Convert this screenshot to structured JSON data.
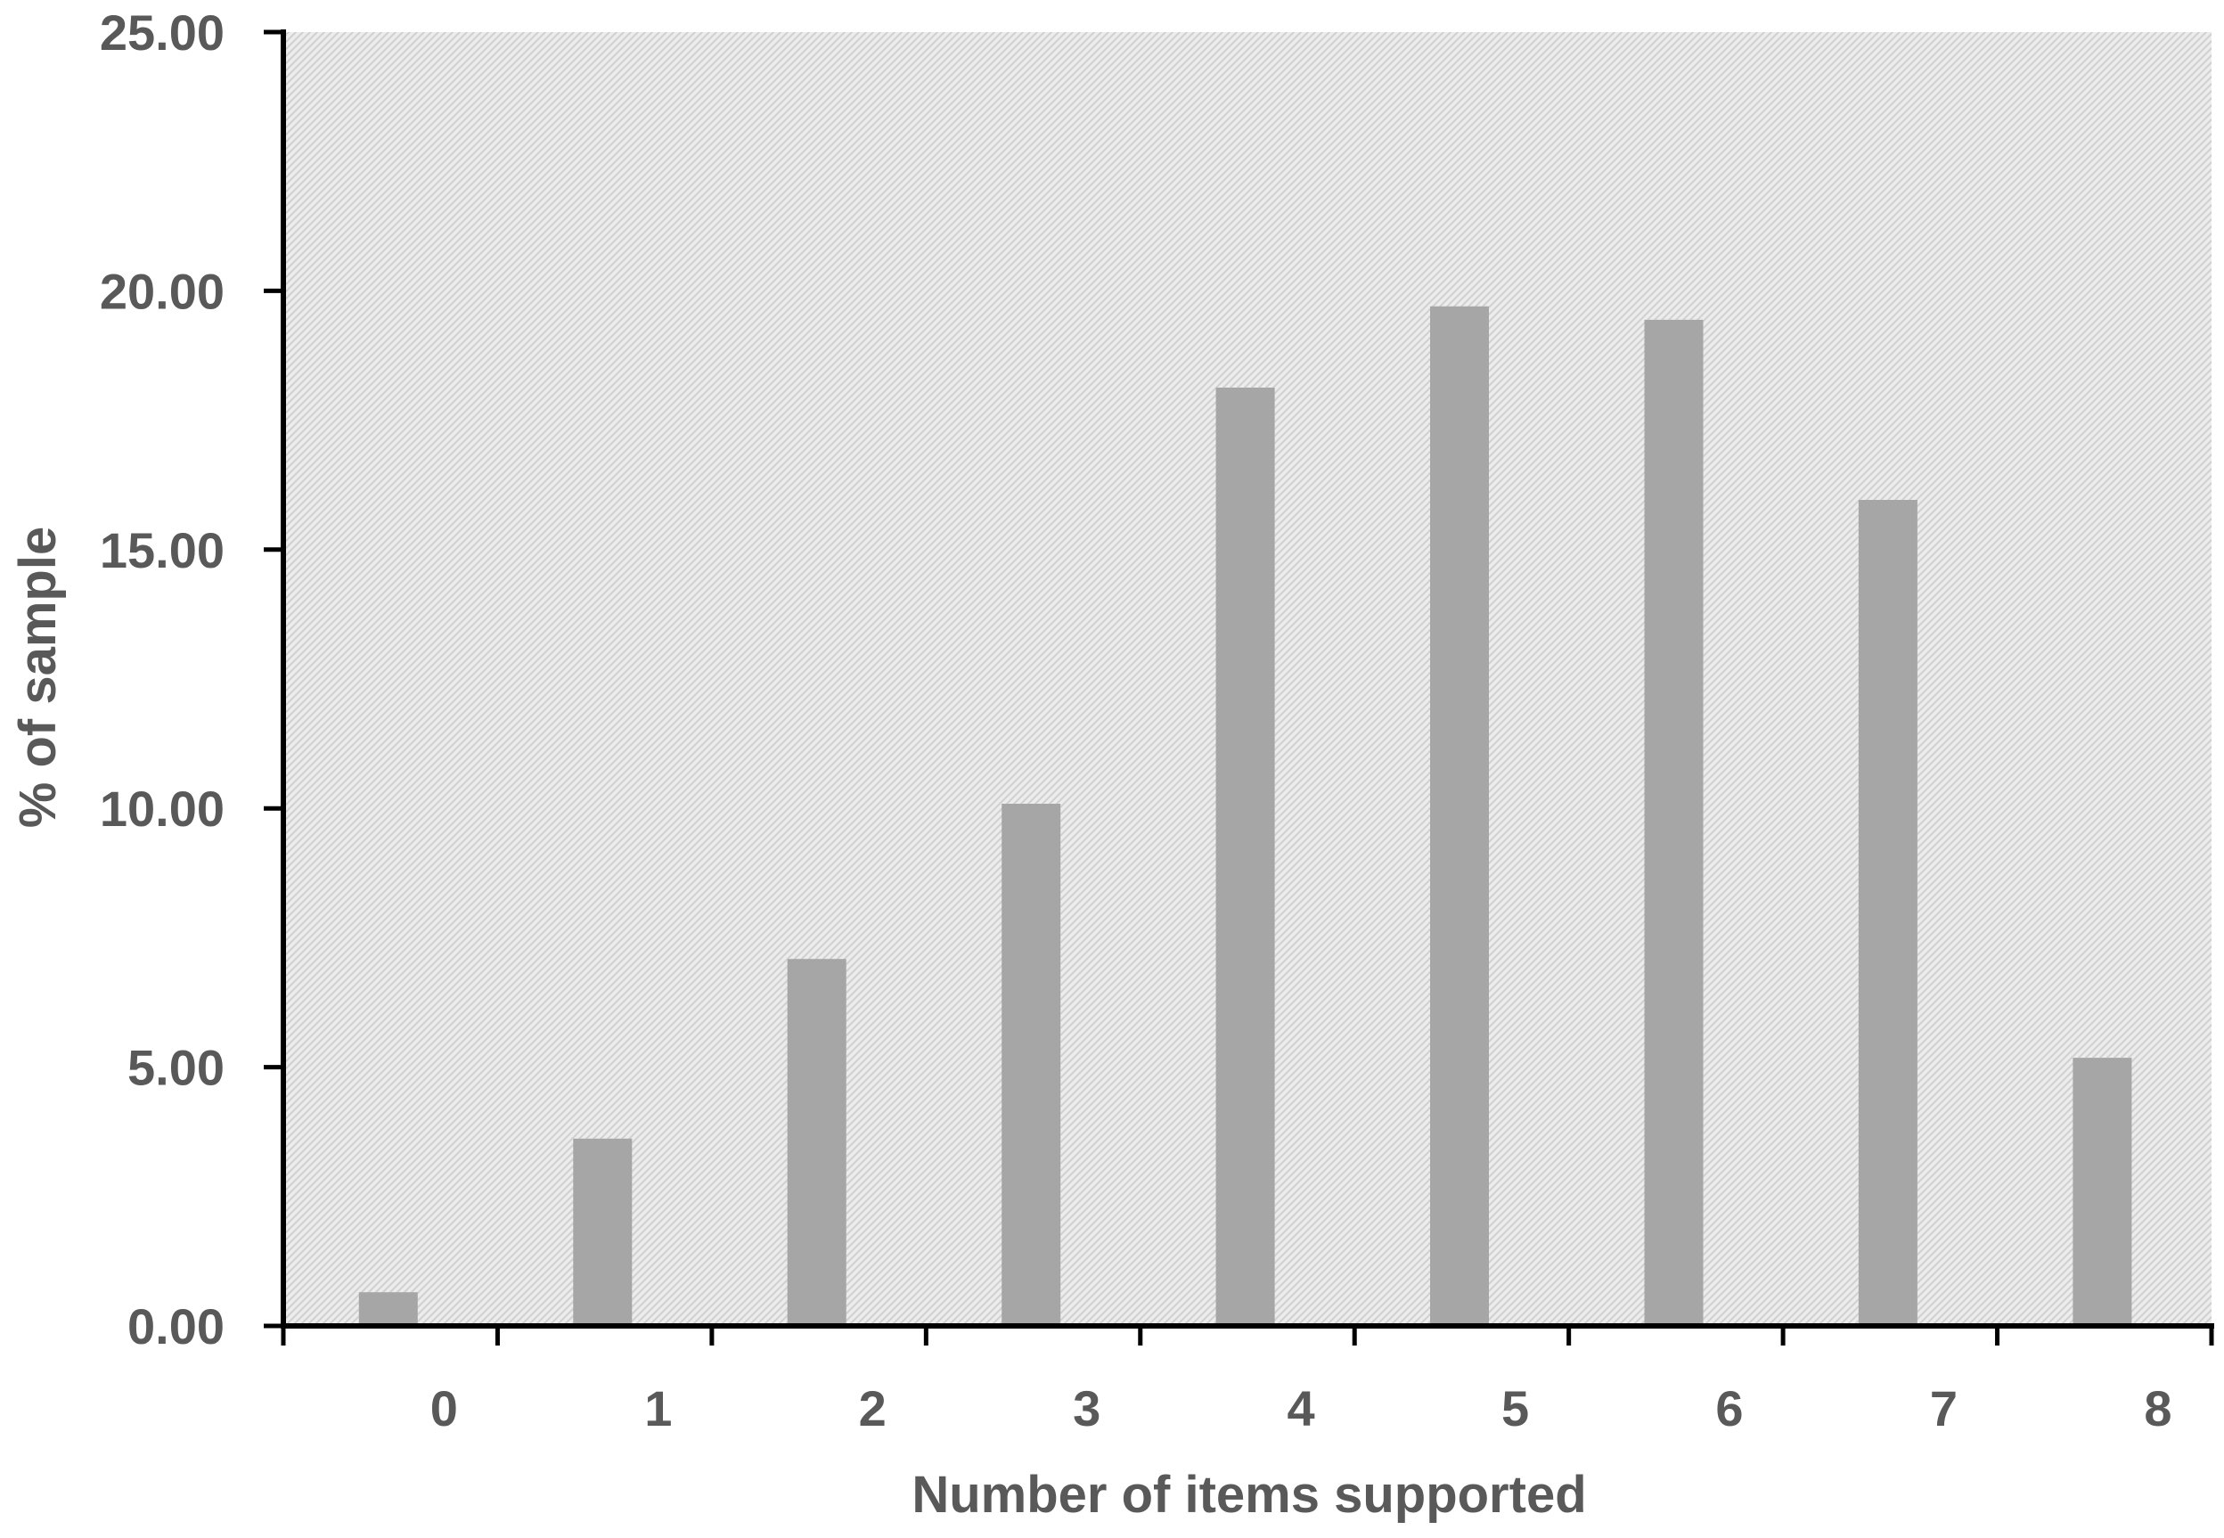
{
  "chart_data": {
    "type": "bar",
    "title": "",
    "xlabel": "Number of items supported",
    "ylabel": "% of sample",
    "categories": [
      "0",
      "1",
      "2",
      "3",
      "4",
      "5",
      "6",
      "7",
      "8"
    ],
    "values": [
      0.65,
      3.62,
      7.09,
      10.09,
      18.13,
      19.7,
      19.44,
      15.96,
      5.18
    ],
    "yticks": [
      "0.00",
      "5.00",
      "10.00",
      "15.00",
      "20.00",
      "25.00"
    ],
    "ylim": [
      0,
      25
    ],
    "grid": false,
    "legend": "none",
    "colors": {
      "bar": "#a6a6a6",
      "axis": "#000000",
      "text": "#595959",
      "plot_background": "#ececec",
      "hatch": "#d0d0d0"
    }
  }
}
